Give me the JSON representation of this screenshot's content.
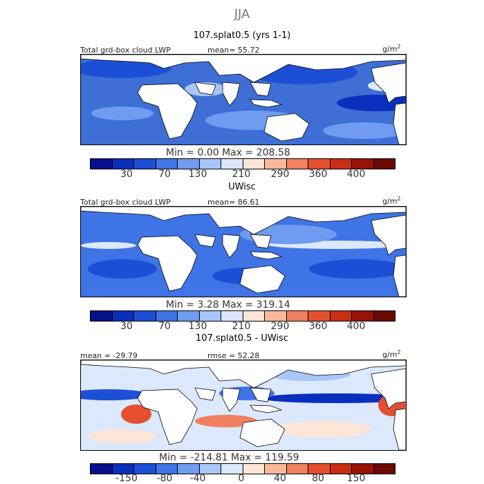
{
  "season": "JJA",
  "colors": {
    "abs_scale": [
      "#08108e",
      "#0b2fbd",
      "#1d4fd6",
      "#3f74e6",
      "#6f9cf0",
      "#a8c6f7",
      "#dce8fb",
      "#fde6d8",
      "#f8b89a",
      "#f08060",
      "#e4502f",
      "#c92e14",
      "#9a1206",
      "#6b0a00"
    ],
    "diff_scale": [
      "#08108e",
      "#0b2fbd",
      "#1d4fd6",
      "#3f74e6",
      "#6f9cf0",
      "#a8c6f7",
      "#dce8fb",
      "#fde6d8",
      "#f8b89a",
      "#f08060",
      "#e4502f",
      "#c92e14",
      "#9a1206",
      "#6b0a00"
    ],
    "land": "#ffffff"
  },
  "panels": [
    {
      "title": "107.splat0.5 (yrs 1-1)",
      "left_label": "Total grd-box cloud LWP",
      "mid_label": "mean=  55.72",
      "units": "g/m",
      "units_sup": "2",
      "min_max": "Min =    0.00  Max = 208.58",
      "ticks": [
        "30",
        "70",
        "130",
        "210",
        "290",
        "360",
        "400"
      ]
    },
    {
      "title": "UWisc",
      "left_label": "Total grd-box cloud LWP",
      "mid_label": "mean=  86.61",
      "units": "g/m",
      "units_sup": "2",
      "min_max": "Min =    3.28  Max = 319.14",
      "ticks": [
        "30",
        "70",
        "130",
        "210",
        "290",
        "360",
        "400"
      ]
    },
    {
      "title": "107.splat0.5 - UWisc",
      "left_label": "mean = -29.79",
      "mid_label": "rmse =  52.28",
      "units": "g/m",
      "units_sup": "2",
      "min_max": "Min = -214.81  Max = 119.59",
      "ticks": [
        "-150",
        "-80",
        "-40",
        "0",
        "40",
        "80",
        "150"
      ]
    }
  ],
  "chart_data": [
    {
      "type": "heatmap",
      "title": "107.splat0.5 (yrs 1-1)",
      "variable": "Total grd-box cloud LWP",
      "units": "g/m2",
      "mean": 55.72,
      "min": 0.0,
      "max": 208.58,
      "contour_levels": [
        30,
        70,
        130,
        210,
        290,
        360,
        400
      ]
    },
    {
      "type": "heatmap",
      "title": "UWisc",
      "variable": "Total grd-box cloud LWP",
      "units": "g/m2",
      "mean": 86.61,
      "min": 3.28,
      "max": 319.14,
      "contour_levels": [
        30,
        70,
        130,
        210,
        290,
        360,
        400
      ]
    },
    {
      "type": "heatmap",
      "title": "107.splat0.5 - UWisc",
      "units": "g/m2",
      "mean": -29.79,
      "rmse": 52.28,
      "min": -214.81,
      "max": 119.59,
      "contour_levels": [
        -150,
        -80,
        -40,
        0,
        40,
        80,
        150
      ]
    }
  ]
}
